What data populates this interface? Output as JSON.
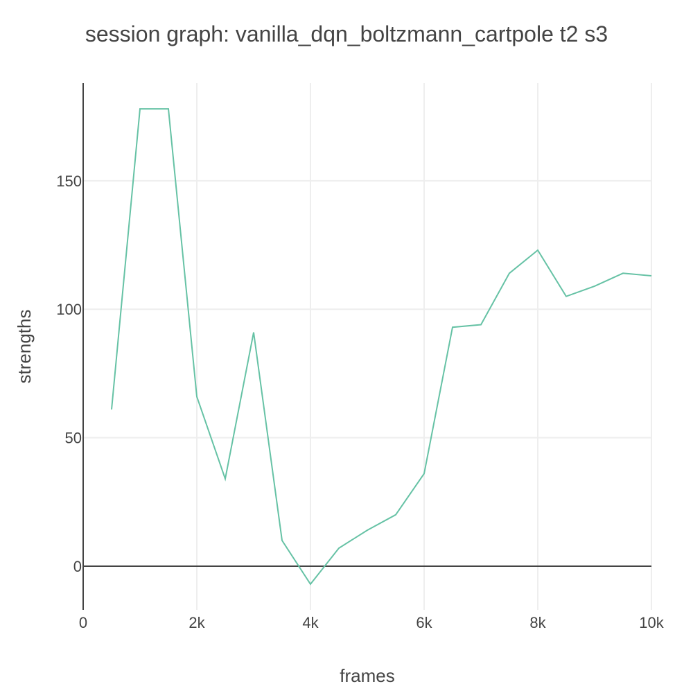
{
  "chart_data": {
    "type": "line",
    "title": "session graph: vanilla_dqn_boltzmann_cartpole t2 s3",
    "xlabel": "frames",
    "ylabel": "strengths",
    "xlim": [
      0,
      10000
    ],
    "ylim": [
      -17,
      188
    ],
    "grid": true,
    "x_ticks": [
      {
        "value": 0,
        "label": "0"
      },
      {
        "value": 2000,
        "label": "2k"
      },
      {
        "value": 4000,
        "label": "4k"
      },
      {
        "value": 6000,
        "label": "6k"
      },
      {
        "value": 8000,
        "label": "8k"
      },
      {
        "value": 10000,
        "label": "10k"
      }
    ],
    "y_ticks": [
      {
        "value": 0,
        "label": "0"
      },
      {
        "value": 50,
        "label": "50"
      },
      {
        "value": 100,
        "label": "100"
      },
      {
        "value": 150,
        "label": "150"
      }
    ],
    "series": [
      {
        "color": "#66c2a5",
        "x": [
          500,
          1000,
          1500,
          2000,
          2500,
          3000,
          3500,
          4000,
          4500,
          5000,
          5500,
          6000,
          6500,
          7000,
          7500,
          8000,
          8500,
          9000,
          9500,
          10000
        ],
        "y": [
          61,
          178,
          178,
          66,
          34,
          91,
          10,
          -7,
          7,
          14,
          20,
          36,
          93,
          94,
          114,
          123,
          105,
          109,
          114,
          113
        ]
      }
    ],
    "colors": {
      "line": "#66c2a5",
      "grid": "#eeeeee",
      "axis": "#444444",
      "text": "#444444"
    }
  }
}
